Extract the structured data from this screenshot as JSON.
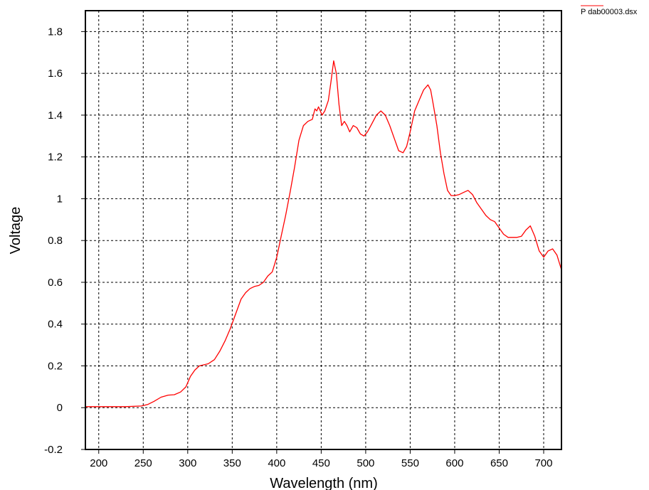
{
  "chart_data": {
    "type": "line",
    "title": "",
    "xlabel": "Wavelength (nm)",
    "ylabel": "Voltage",
    "xlim": [
      185,
      720
    ],
    "ylim": [
      -0.2,
      1.9
    ],
    "xticks": [
      200,
      250,
      300,
      350,
      400,
      450,
      500,
      550,
      600,
      650,
      700
    ],
    "xtick_labels": [
      "200",
      "250",
      "300",
      "350",
      "400",
      "450",
      "500",
      "550",
      "600",
      "650",
      "700"
    ],
    "yticks": [
      -0.2,
      0,
      0.2,
      0.4,
      0.6,
      0.8,
      1,
      1.2,
      1.4,
      1.6,
      1.8
    ],
    "ytick_labels": [
      "-0.2",
      "0",
      "0.2",
      "0.4",
      "0.6",
      "0.8",
      "1",
      "1.2",
      "1.4",
      "1.6",
      "1.8"
    ],
    "grid": true,
    "grid_style": "dashed",
    "legend_position": "top-right",
    "series": [
      {
        "name": "P dab00003.dsx",
        "color": "#ff0000",
        "x": [
          185,
          200,
          230,
          248,
          255,
          262,
          270,
          278,
          285,
          292,
          298,
          303,
          308,
          313,
          318,
          323,
          330,
          336,
          342,
          348,
          354,
          360,
          365,
          370,
          375,
          380,
          385,
          390,
          395,
          400,
          405,
          410,
          415,
          420,
          425,
          430,
          435,
          440,
          443,
          445,
          447,
          449,
          451,
          454,
          458,
          461,
          464,
          467,
          470,
          473,
          476,
          479,
          482,
          486,
          490,
          494,
          498,
          502,
          507,
          512,
          517,
          522,
          527,
          532,
          537,
          542,
          546,
          550,
          555,
          560,
          565,
          570,
          573,
          576,
          580,
          584,
          588,
          592,
          596,
          600,
          605,
          610,
          615,
          620,
          625,
          630,
          635,
          640,
          645,
          650,
          655,
          660,
          665,
          670,
          675,
          680,
          685,
          690,
          695,
          700,
          705,
          710,
          715,
          720
        ],
        "y": [
          0.005,
          0.005,
          0.005,
          0.008,
          0.015,
          0.03,
          0.05,
          0.06,
          0.062,
          0.075,
          0.1,
          0.15,
          0.18,
          0.2,
          0.205,
          0.21,
          0.23,
          0.27,
          0.32,
          0.38,
          0.45,
          0.52,
          0.55,
          0.57,
          0.58,
          0.585,
          0.6,
          0.63,
          0.65,
          0.72,
          0.82,
          0.92,
          1.03,
          1.15,
          1.28,
          1.35,
          1.37,
          1.38,
          1.43,
          1.42,
          1.44,
          1.42,
          1.4,
          1.42,
          1.47,
          1.56,
          1.66,
          1.6,
          1.45,
          1.35,
          1.37,
          1.35,
          1.32,
          1.35,
          1.34,
          1.31,
          1.3,
          1.32,
          1.36,
          1.4,
          1.42,
          1.4,
          1.35,
          1.29,
          1.23,
          1.22,
          1.25,
          1.32,
          1.42,
          1.47,
          1.52,
          1.545,
          1.52,
          1.45,
          1.35,
          1.22,
          1.12,
          1.04,
          1.015,
          1.015,
          1.02,
          1.03,
          1.04,
          1.02,
          0.98,
          0.95,
          0.92,
          0.9,
          0.89,
          0.86,
          0.83,
          0.815,
          0.815,
          0.815,
          0.82,
          0.85,
          0.87,
          0.82,
          0.75,
          0.72,
          0.75,
          0.76,
          0.73,
          0.66
        ]
      }
    ]
  }
}
